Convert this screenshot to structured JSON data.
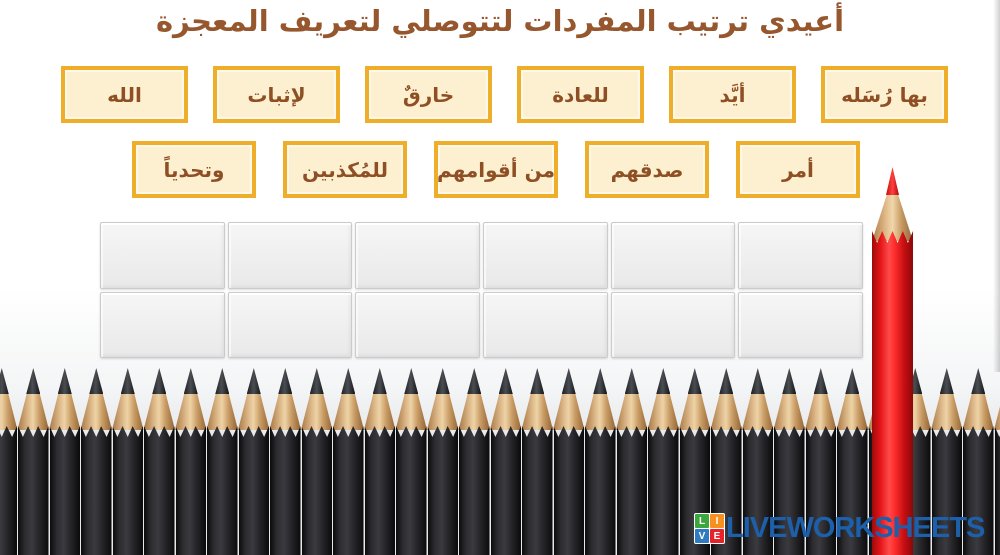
{
  "title": "أعيدي ترتيب المفردات لتتوصلي لتعريف المعجزة",
  "word_bank": {
    "row1": [
      "الله",
      "لإثبات",
      "خارقٌ",
      "للعادة",
      "أيَّد",
      "بها رُسَله"
    ],
    "row2": [
      "وتحدياً",
      "للمُكذبين",
      "من أقوامهم",
      "صدقهم",
      "أمر"
    ]
  },
  "answer_grid": {
    "rows": 2,
    "columns": 6,
    "cells_empty": true
  },
  "branding": {
    "logo_text": "LIVEWORKSHEETS",
    "logo_tiles": [
      {
        "letter": "L",
        "color": "#3da63f"
      },
      {
        "letter": "I",
        "color": "#f59120"
      },
      {
        "letter": "V",
        "color": "#2f7bbf"
      },
      {
        "letter": "E",
        "color": "#e8222a"
      }
    ]
  },
  "colors": {
    "title_text": "#96572e",
    "tile_fill": "#fdf0d1",
    "tile_border": "#efae29",
    "tile_text": "#8e4f24",
    "grid_cell": "#ececec",
    "red_pencil": "#e31417",
    "black_pencil": "#2c2c30",
    "pencil_wood": "#eed3a6",
    "logo_blue": "#1d5fa9"
  }
}
